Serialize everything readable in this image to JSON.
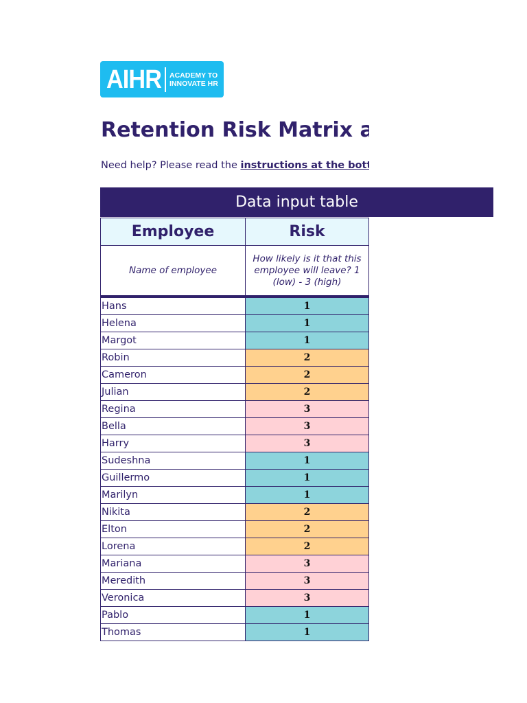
{
  "logo": {
    "mark": "AIHR",
    "tagline_line1": "ACADEMY TO",
    "tagline_line2": "INNOVATE HR"
  },
  "title": "Retention Risk Matrix and Action Plan",
  "help": {
    "prefix": "Need help? Please read the ",
    "link": "instructions at the bottom"
  },
  "banner": "Data input table",
  "headers": {
    "employee": "Employee",
    "risk": "Risk"
  },
  "descriptions": {
    "employee": "Name of employee",
    "risk": "How likely is it that this employee will leave? 1 (low) - 3 (high)"
  },
  "risk_colors": {
    "1": "#8dd4dc",
    "2": "#ffd18e",
    "3": "#ffd1d6"
  },
  "rows": [
    {
      "name": "Hans",
      "risk": "1"
    },
    {
      "name": "Helena",
      "risk": "1"
    },
    {
      "name": "Margot",
      "risk": "1"
    },
    {
      "name": "Robin",
      "risk": "2"
    },
    {
      "name": "Cameron",
      "risk": "2"
    },
    {
      "name": "Julian",
      "risk": "2"
    },
    {
      "name": "Regina",
      "risk": "3"
    },
    {
      "name": "Bella",
      "risk": "3"
    },
    {
      "name": "Harry",
      "risk": "3"
    },
    {
      "name": "Sudeshna",
      "risk": "1"
    },
    {
      "name": "Guillermo",
      "risk": "1"
    },
    {
      "name": "Marilyn",
      "risk": "1"
    },
    {
      "name": "Nikita",
      "risk": "2"
    },
    {
      "name": "Elton",
      "risk": "2"
    },
    {
      "name": "Lorena",
      "risk": "2"
    },
    {
      "name": "Mariana",
      "risk": "3"
    },
    {
      "name": "Meredith",
      "risk": "3"
    },
    {
      "name": "Veronica",
      "risk": "3"
    },
    {
      "name": "Pablo",
      "risk": "1"
    },
    {
      "name": "Thomas",
      "risk": "1"
    }
  ]
}
